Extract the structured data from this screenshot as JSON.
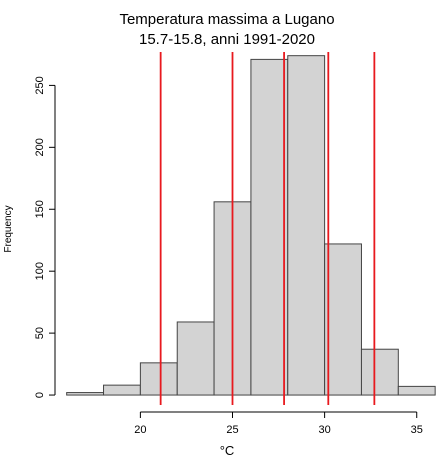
{
  "chart_data": {
    "type": "bar",
    "title_line1": "Temperatura massima a Lugano",
    "title_line2": "15.7-15.8, anni 1991-2020",
    "xlabel": "°C",
    "ylabel": "Frequency",
    "x_ticks": [
      "20",
      "25",
      "30",
      "35"
    ],
    "y_ticks": [
      "0",
      "50",
      "100",
      "150",
      "200",
      "250"
    ],
    "xlim": [
      15.8,
      36.1
    ],
    "ylim": [
      -4,
      281
    ],
    "bins": [
      {
        "x0": 16,
        "x1": 18,
        "value": 2
      },
      {
        "x0": 18,
        "x1": 20,
        "value": 8
      },
      {
        "x0": 20,
        "x1": 22,
        "value": 26
      },
      {
        "x0": 22,
        "x1": 24,
        "value": 59
      },
      {
        "x0": 24,
        "x1": 26,
        "value": 156
      },
      {
        "x0": 26,
        "x1": 28,
        "value": 271
      },
      {
        "x0": 28,
        "x1": 30,
        "value": 274
      },
      {
        "x0": 30,
        "x1": 32,
        "value": 122
      },
      {
        "x0": 32,
        "x1": 34,
        "value": 37
      },
      {
        "x0": 34,
        "x1": 36,
        "value": 7
      }
    ],
    "vlines": [
      21.1,
      25.0,
      27.8,
      30.2,
      32.7
    ],
    "bar_fill": "#d3d3d3",
    "bar_stroke": "#444444",
    "vline_color": "#e8191e",
    "grid": false
  }
}
